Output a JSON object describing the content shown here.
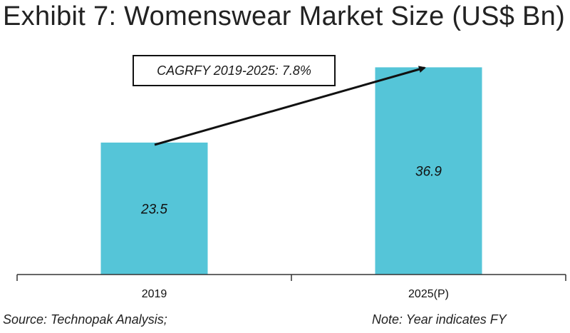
{
  "title": "Exhibit 7: Womenswear Market Size (US$ Bn)",
  "annotation": "CAGRFY 2019-2025: 7.8%",
  "footer": {
    "source": "Source: Technopak Analysis;",
    "note": "Note: Year indicates FY"
  },
  "colors": {
    "bar": "#55c5d8",
    "axis": "#333333",
    "arrow": "#111111"
  },
  "chart_data": {
    "type": "bar",
    "title": "Exhibit 7: Womenswear Market Size (US$ Bn)",
    "categories": [
      "2019",
      "2025(P)"
    ],
    "values": [
      23.5,
      36.9
    ],
    "data_labels": [
      "23.5",
      "36.9"
    ],
    "ylim": [
      0,
      40
    ],
    "grid": false,
    "annotation": "CAGRFY 2019-2025: 7.8%"
  }
}
